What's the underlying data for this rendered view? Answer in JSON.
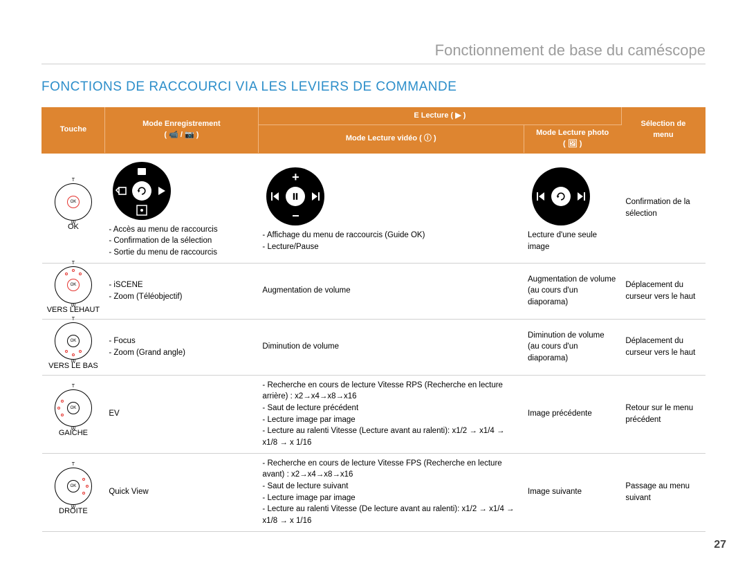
{
  "page": {
    "subtitle": "Fonctionnement de base du caméscope",
    "title": "FONCTIONS DE RACCOURCI VIA LES LEVIERS DE COMMANDE",
    "page_number": "27"
  },
  "header": {
    "c1": "Touche",
    "c2_l1": "Mode Enregistrement",
    "c2_l2": "( 📹 / 📷 )",
    "c3_group": "E Lecture ( ▶ )",
    "c3a_l1": "Mode Lecture vidéo ( ⓘ )",
    "c3b_l1": "Mode Lecture photo",
    "c3b_l2": "( 🖼 )",
    "c4_l1": "Sélection de",
    "c4_l2": "menu"
  },
  "rows": [
    {
      "touche_label": "OK",
      "dots": "center",
      "wheel": "rec",
      "enr": [
        "Accès au menu de raccourcis",
        "Confirmation de la sélection",
        "Sortie du menu de raccourcis"
      ],
      "video_wheel": "play",
      "video": [
        "Affichage du menu de raccourcis (Guide OK)",
        "Lecture/Pause"
      ],
      "photo_wheel": "photo",
      "photo": "Lecture d'une seule image",
      "menu": "Confirmation de la sélection"
    },
    {
      "touche_label": "VERS LEHAUT",
      "dots": "up",
      "enr": [
        "iSCENE",
        "Zoom (Téléobjectif)"
      ],
      "video_text": "Augmentation de volume",
      "photo": "Augmentation de volume (au cours d'un diaporama)",
      "menu": "Déplacement du curseur vers le haut"
    },
    {
      "touche_label": "VERS LE BAS",
      "dots": "down",
      "enr": [
        "Focus",
        "Zoom (Grand angle)"
      ],
      "video_text": "Diminution de volume",
      "photo": "Diminution de volume (au cours d'un diaporama)",
      "menu": "Déplacement du curseur vers le haut"
    },
    {
      "touche_label": "GAICHE",
      "dots": "left",
      "enr_text": "EV",
      "video": [
        "Recherche en cours de lecture Vitesse RPS (Recherche en lecture arrière) : x2→x4→x8→x16",
        "Saut de lecture précédent",
        "Lecture image par image",
        "Lecture au ralenti Vitesse (Lecture avant au ralenti): x1/2 → x1/4 → x1/8 → x 1/16"
      ],
      "photo": "Image précédente",
      "menu": "Retour sur le menu précédent"
    },
    {
      "touche_label": "DROITE",
      "dots": "right",
      "enr_text": "Quick View",
      "video": [
        "Recherche en cours de lecture Vitesse FPS (Recherche en lecture avant) : x2→x4→x8→x16",
        "Saut de lecture suivant",
        "Lecture image par image",
        "Lecture au ralenti Vitesse (De lecture avant au ralenti): x1/2 → x1/4 → x1/8 → x 1/16"
      ],
      "photo": "Image suivante",
      "menu": "Passage au menu suivant"
    }
  ]
}
